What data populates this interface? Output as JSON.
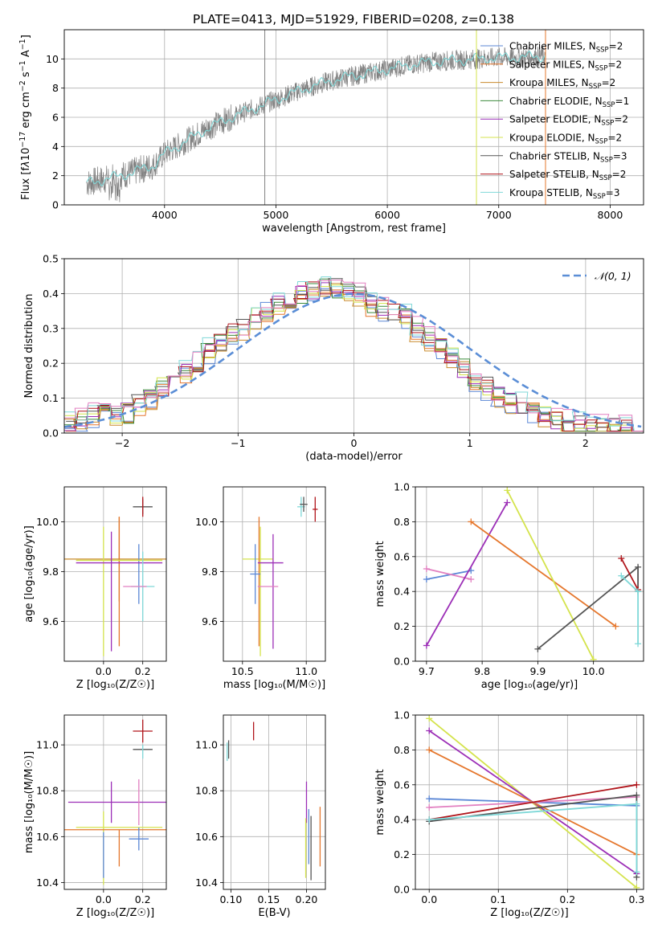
{
  "figure_title": "PLATE=0413, MJD=51929, FIBERID=0208, z=0.138",
  "colors": {
    "Chabrier MILES": "#5b87d6",
    "Salpeter MILES": "#e5772d",
    "Kroupa MILES": "#c98a2b",
    "Chabrier ELODIE": "#3b8a3b",
    "Salpeter ELODIE": "#9c2fb7",
    "Kroupa ELODIE": "#d4e34c",
    "Chabrier STELIB": "#555555",
    "Salpeter STELIB": "#b0151b",
    "Kroupa STELIB": "#7fd8d8",
    "pink": "#e27fc0",
    "data": "#808080",
    "normal": "#5b8ed6"
  },
  "chart_data": [
    {
      "type": "line",
      "name": "spectrum",
      "xlabel": "wavelength [Angstrom, rest frame]",
      "ylabel_parts": [
        "Flux [f",
        "λ",
        "10",
        "−17",
        " erg cm",
        "−2",
        " s",
        "−1",
        " A",
        "−1",
        "]"
      ],
      "xlim": [
        3100,
        8300
      ],
      "ylim": [
        0,
        12
      ],
      "xticks": [
        4000,
        5000,
        6000,
        7000,
        8000
      ],
      "yticks": [
        0,
        2,
        4,
        6,
        8,
        10
      ],
      "continuum_x": [
        3300,
        3500,
        3700,
        3900,
        4000,
        4200,
        4400,
        4600,
        4800,
        5000,
        5200,
        5400,
        5600,
        5800,
        6000,
        6200,
        6400,
        6600,
        6800,
        7000,
        7200,
        7400
      ],
      "continuum_y": [
        1.5,
        1.8,
        2.2,
        2.7,
        3.5,
        4.4,
        5.3,
        6.0,
        6.6,
        7.2,
        7.8,
        8.3,
        8.7,
        9.0,
        9.3,
        9.6,
        9.8,
        9.9,
        10.0,
        10.1,
        10.1,
        10.2
      ],
      "spike_x": [
        4900,
        6800,
        7420
      ],
      "legend": [
        {
          "label": "Chabrier MILES, N",
          "sub": "SSP",
          "suffix": "=2"
        },
        {
          "label": "Salpeter MILES, N",
          "sub": "SSP",
          "suffix": "=2"
        },
        {
          "label": "Kroupa MILES, N",
          "sub": "SSP",
          "suffix": "=2"
        },
        {
          "label": "Chabrier ELODIE, N",
          "sub": "SSP",
          "suffix": "=1"
        },
        {
          "label": "Salpeter ELODIE, N",
          "sub": "SSP",
          "suffix": "=2"
        },
        {
          "label": "Kroupa ELODIE, N",
          "sub": "SSP",
          "suffix": "=2"
        },
        {
          "label": "Chabrier STELIB, N",
          "sub": "SSP",
          "suffix": "=3"
        },
        {
          "label": "Salpeter STELIB, N",
          "sub": "SSP",
          "suffix": "=2"
        },
        {
          "label": "Kroupa STELIB, N",
          "sub": "SSP",
          "suffix": "=3"
        }
      ]
    },
    {
      "type": "histogram",
      "name": "residuals",
      "xlabel": "(data-model)/error",
      "ylabel": "Normed distribution",
      "xlim": [
        -2.5,
        2.5
      ],
      "ylim": [
        0,
        0.5
      ],
      "xticks": [
        -2,
        -1,
        0,
        1,
        2
      ],
      "yticks": [
        0.0,
        0.1,
        0.2,
        0.3,
        0.4,
        0.5
      ],
      "normal_curve": {
        "label": "𝒩(0, 1)",
        "mean": 0,
        "sigma": 1
      },
      "bin_width": 0.1,
      "base_density": [
        0.03,
        0.035,
        0.05,
        0.06,
        0.05,
        0.06,
        0.08,
        0.1,
        0.13,
        0.16,
        0.18,
        0.2,
        0.24,
        0.26,
        0.28,
        0.3,
        0.33,
        0.36,
        0.37,
        0.38,
        0.4,
        0.41,
        0.42,
        0.42,
        0.41,
        0.4,
        0.37,
        0.36,
        0.35,
        0.34,
        0.3,
        0.27,
        0.25,
        0.22,
        0.19,
        0.16,
        0.13,
        0.11,
        0.09,
        0.08,
        0.07,
        0.05,
        0.04,
        0.03,
        0.03,
        0.02,
        0.02,
        0.015,
        0.015,
        0.01
      ]
    },
    {
      "type": "scatter",
      "name": "age-vs-Z",
      "xlabel": "Z [log₁₀(Z/Z☉)]",
      "ylabel": "age  [log₁₀(age/yr)]",
      "xlim": [
        -0.2,
        0.32
      ],
      "ylim": [
        9.44,
        10.14
      ],
      "xticks": [
        0.0,
        0.2
      ],
      "yticks": [
        9.6,
        9.8,
        10.0
      ],
      "points": [
        {
          "c": "Kroupa MILES",
          "x": 0.08,
          "y": 9.85,
          "xe": 0.28,
          "ye": 0.17
        },
        {
          "c": "Salpeter MILES",
          "x": 0.08,
          "y": 9.76,
          "xe": 0.0,
          "ye": 0.26
        },
        {
          "c": "Chabrier MILES",
          "x": 0.18,
          "y": 9.79,
          "xe": 0.0,
          "ye": 0.12
        },
        {
          "c": "Kroupa ELODIE",
          "x": 0.0,
          "y": 9.72,
          "xe": 0.0,
          "ye": 0.26
        },
        {
          "c": "Kroupa ELODIE",
          "x": 0.08,
          "y": 9.845,
          "xe": 0.22,
          "ye": 0.0
        },
        {
          "c": "Salpeter ELODIE",
          "x": 0.08,
          "y": 9.835,
          "xe": 0.22,
          "ye": 0.0
        },
        {
          "c": "Salpeter ELODIE",
          "x": 0.04,
          "y": 9.72,
          "xe": 0.0,
          "ye": 0.24
        },
        {
          "c": "Kroupa STELIB",
          "x": 0.2,
          "y": 9.74,
          "xe": 0.06,
          "ye": 0.14
        },
        {
          "c": "pink",
          "x": 0.16,
          "y": 9.74,
          "xe": 0.06,
          "ye": 0.0
        },
        {
          "c": "Chabrier STELIB",
          "x": 0.2,
          "y": 10.06,
          "xe": 0.05,
          "ye": 0.03
        },
        {
          "c": "Salpeter STELIB",
          "x": 0.2,
          "y": 10.06,
          "xe": 0.0,
          "ye": 0.04
        }
      ]
    },
    {
      "type": "scatter",
      "name": "age-vs-mass",
      "xlabel": "mass [log₁₀(M/M☉)]",
      "ylabel": "",
      "xlim": [
        10.35,
        11.15
      ],
      "ylim": [
        9.44,
        10.14
      ],
      "xticks": [
        10.5,
        11.0
      ],
      "yticks": [
        9.6,
        9.8,
        10.0
      ],
      "points": [
        {
          "c": "Kroupa ELODIE",
          "x": 10.62,
          "y": 9.85,
          "xe": 0.12,
          "ye": 0.0
        },
        {
          "c": "Salpeter MILES",
          "x": 10.63,
          "y": 9.76,
          "xe": 0.0,
          "ye": 0.26
        },
        {
          "c": "Kroupa ELODIE",
          "x": 10.64,
          "y": 9.72,
          "xe": 0.0,
          "ye": 0.26
        },
        {
          "c": "Chabrier MILES",
          "x": 10.6,
          "y": 9.79,
          "xe": 0.04,
          "ye": 0.12
        },
        {
          "c": "Salpeter ELODIE",
          "x": 10.72,
          "y": 9.835,
          "xe": 0.1,
          "ye": 0.0
        },
        {
          "c": "Salpeter ELODIE",
          "x": 10.74,
          "y": 9.72,
          "xe": 0.0,
          "ye": 0.23
        },
        {
          "c": "pink",
          "x": 10.7,
          "y": 9.74,
          "xe": 0.08,
          "ye": 0.0
        },
        {
          "c": "Kroupa STELIB",
          "x": 10.96,
          "y": 10.06,
          "xe": 0.03,
          "ye": 0.04
        },
        {
          "c": "Chabrier STELIB",
          "x": 10.98,
          "y": 10.07,
          "xe": 0.03,
          "ye": 0.03
        },
        {
          "c": "Salpeter STELIB",
          "x": 11.07,
          "y": 10.05,
          "xe": 0.02,
          "ye": 0.05
        }
      ]
    },
    {
      "type": "line",
      "name": "mass-weight-vs-age",
      "xlabel": "age  [log₁₀(age/yr)]",
      "ylabel": "mass weight",
      "xlim": [
        9.68,
        10.09
      ],
      "ylim": [
        0,
        1
      ],
      "xticks": [
        9.7,
        9.8,
        9.9,
        10.0
      ],
      "yticks": [
        0.0,
        0.2,
        0.4,
        0.6,
        0.8,
        1.0
      ],
      "series": [
        {
          "c": "Chabrier MILES",
          "x": [
            9.7,
            9.78
          ],
          "y": [
            0.47,
            0.52
          ]
        },
        {
          "c": "pink",
          "x": [
            9.7,
            9.78
          ],
          "y": [
            0.53,
            0.47
          ]
        },
        {
          "c": "Salpeter ELODIE",
          "x": [
            9.7,
            9.845
          ],
          "y": [
            0.09,
            0.91
          ]
        },
        {
          "c": "Salpeter MILES",
          "x": [
            9.78,
            10.04
          ],
          "y": [
            0.8,
            0.2
          ]
        },
        {
          "c": "Kroupa ELODIE",
          "x": [
            9.845,
            10.0
          ],
          "y": [
            0.98,
            0.01
          ]
        },
        {
          "c": "Chabrier STELIB",
          "x": [
            9.9,
            10.08,
            10.08
          ],
          "y": [
            0.07,
            0.54,
            0.4
          ]
        },
        {
          "c": "Salpeter STELIB",
          "x": [
            10.05,
            10.08
          ],
          "y": [
            0.59,
            0.41
          ]
        },
        {
          "c": "Kroupa STELIB",
          "x": [
            10.05,
            10.08,
            10.08
          ],
          "y": [
            0.49,
            0.4,
            0.1
          ]
        }
      ]
    },
    {
      "type": "scatter",
      "name": "mass-vs-Z",
      "xlabel": "Z [log₁₀(Z/Z☉)]",
      "ylabel": "mass [log₁₀(M/M☉)]",
      "xlim": [
        -0.2,
        0.32
      ],
      "ylim": [
        10.37,
        11.13
      ],
      "xticks": [
        0.0,
        0.2
      ],
      "yticks": [
        10.4,
        10.6,
        10.8,
        11.0
      ],
      "points": [
        {
          "c": "Salpeter STELIB",
          "x": 0.2,
          "y": 11.06,
          "xe": 0.05,
          "ye": 0.05
        },
        {
          "c": "Chabrier STELIB",
          "x": 0.2,
          "y": 10.98,
          "xe": 0.05,
          "ye": 0.0
        },
        {
          "c": "Kroupa STELIB",
          "x": 0.2,
          "y": 10.97,
          "xe": 0.0,
          "ye": 0.03
        },
        {
          "c": "Salpeter ELODIE",
          "x": 0.13,
          "y": 10.75,
          "xe": 0.31,
          "ye": 0.0
        },
        {
          "c": "Salpeter ELODIE",
          "x": 0.04,
          "y": 10.75,
          "xe": 0.0,
          "ye": 0.09
        },
        {
          "c": "pink",
          "x": 0.18,
          "y": 10.75,
          "xe": 0.0,
          "ye": 0.1
        },
        {
          "c": "Kroupa ELODIE",
          "x": 0.08,
          "y": 10.64,
          "xe": 0.22,
          "ye": 0.0
        },
        {
          "c": "Kroupa ELODIE",
          "x": 0.0,
          "y": 10.55,
          "xe": 0.0,
          "ye": 0.16
        },
        {
          "c": "Salpeter MILES",
          "x": 0.08,
          "y": 10.63,
          "xe": 0.3,
          "ye": 0.0
        },
        {
          "c": "Salpeter MILES",
          "x": 0.08,
          "y": 10.55,
          "xe": 0.0,
          "ye": 0.08
        },
        {
          "c": "Chabrier MILES",
          "x": 0.18,
          "y": 10.59,
          "xe": 0.05,
          "ye": 0.05
        },
        {
          "c": "Chabrier MILES",
          "x": 0.0,
          "y": 10.52,
          "xe": 0.0,
          "ye": 0.1
        }
      ]
    },
    {
      "type": "scatter",
      "name": "mass-vs-EBV",
      "xlabel": "E(B-V)",
      "ylabel": "",
      "xlim": [
        0.09,
        0.225
      ],
      "ylim": [
        10.37,
        11.13
      ],
      "xticks": [
        0.1,
        0.15,
        0.2
      ],
      "yticks": [
        10.4,
        10.6,
        10.8,
        11.0
      ],
      "points": [
        {
          "c": "Salpeter STELIB",
          "x": 0.13,
          "y": 11.06,
          "xe": 0.0,
          "ye": 0.04
        },
        {
          "c": "Kroupa STELIB",
          "x": 0.095,
          "y": 10.97,
          "xe": 0.0,
          "ye": 0.04
        },
        {
          "c": "Chabrier STELIB",
          "x": 0.097,
          "y": 10.98,
          "xe": 0.0,
          "ye": 0.04
        },
        {
          "c": "Salpeter ELODIE",
          "x": 0.2,
          "y": 10.75,
          "xe": 0.0,
          "ye": 0.09
        },
        {
          "c": "Kroupa ELODIE",
          "x": 0.199,
          "y": 10.55,
          "xe": 0.0,
          "ye": 0.13
        },
        {
          "c": "Chabrier MILES",
          "x": 0.203,
          "y": 10.6,
          "xe": 0.0,
          "ye": 0.12
        },
        {
          "c": "Chabrier STELIB",
          "x": 0.206,
          "y": 10.55,
          "xe": 0.0,
          "ye": 0.14
        },
        {
          "c": "Salpeter MILES",
          "x": 0.218,
          "y": 10.6,
          "xe": 0.0,
          "ye": 0.13
        }
      ]
    },
    {
      "type": "line",
      "name": "mass-weight-vs-Z",
      "xlabel": "Z [log₁₀(Z/Z☉)]",
      "ylabel": "mass weight",
      "xlim": [
        -0.02,
        0.31
      ],
      "ylim": [
        0,
        1
      ],
      "xticks": [
        0.0,
        0.1,
        0.2,
        0.3
      ],
      "yticks": [
        0.0,
        0.2,
        0.4,
        0.6,
        0.8,
        1.0
      ],
      "series": [
        {
          "c": "Kroupa ELODIE",
          "x": [
            0,
            0.3
          ],
          "y": [
            0.98,
            0.01
          ]
        },
        {
          "c": "Salpeter ELODIE",
          "x": [
            0,
            0.3
          ],
          "y": [
            0.91,
            0.09
          ]
        },
        {
          "c": "Salpeter MILES",
          "x": [
            0,
            0.3
          ],
          "y": [
            0.8,
            0.2
          ]
        },
        {
          "c": "Chabrier MILES",
          "x": [
            0,
            0.3
          ],
          "y": [
            0.52,
            0.48
          ]
        },
        {
          "c": "pink",
          "x": [
            0,
            0.3
          ],
          "y": [
            0.47,
            0.53
          ]
        },
        {
          "c": "Salpeter STELIB",
          "x": [
            0,
            0.3
          ],
          "y": [
            0.4,
            0.6
          ]
        },
        {
          "c": "Chabrier STELIB",
          "x": [
            0,
            0.3,
            0.3
          ],
          "y": [
            0.39,
            0.54,
            0.07
          ]
        },
        {
          "c": "Kroupa STELIB",
          "x": [
            0,
            0.3,
            0.3
          ],
          "y": [
            0.4,
            0.49,
            0.1
          ]
        }
      ]
    }
  ]
}
